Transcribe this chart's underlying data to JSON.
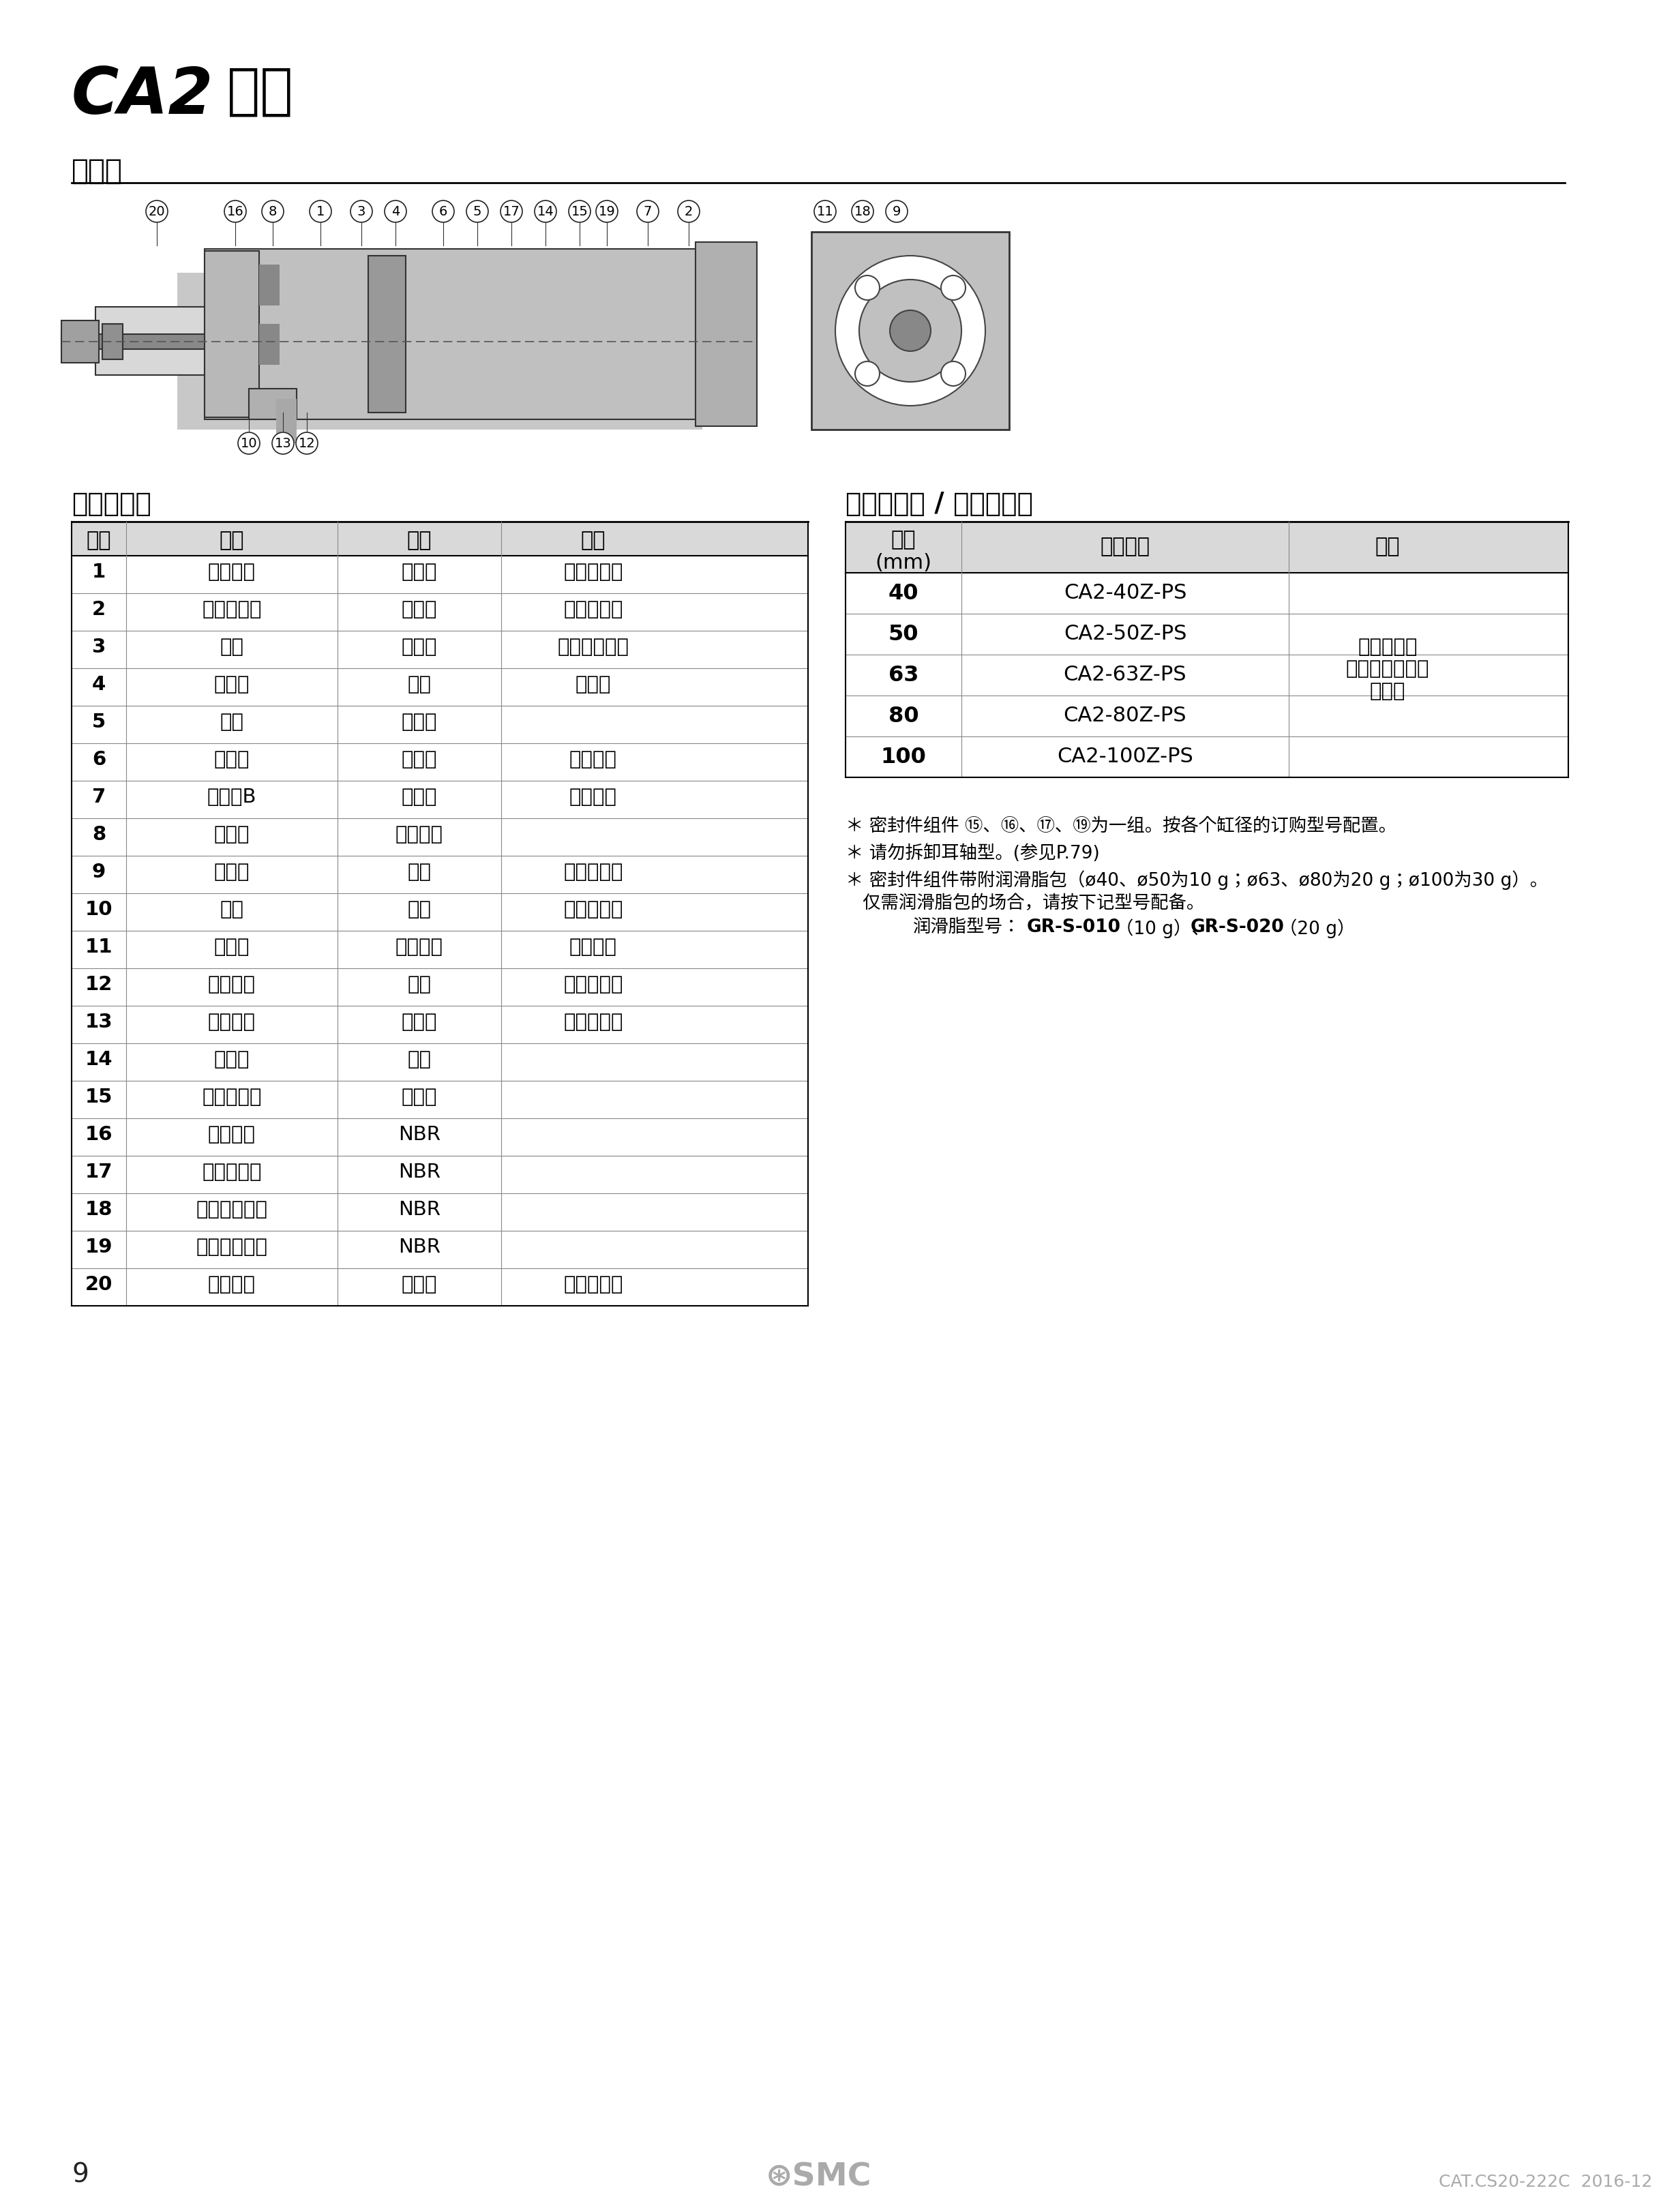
{
  "title_italic": "CA2",
  "title_normal": " 系列",
  "section_title": "结构图",
  "left_table_title": "组成零部件",
  "right_table_title": "可更换零件 / 密封件组件",
  "left_table_headers": [
    "序号",
    "名称",
    "材质",
    "备注"
  ],
  "left_table_rows": [
    [
      "1",
      "杆侧缸盖",
      "压铸铝",
      "三价铬酸盐"
    ],
    [
      "2",
      "无杆侧缸盖",
      "压铸铝",
      "三价铬酸盐"
    ],
    [
      "3",
      "缸筒",
      "铝合金",
      "硬质阳极氧化"
    ],
    [
      "4",
      "活塞杆",
      "碳钢",
      "镀硬铬"
    ],
    [
      "5",
      "活塞",
      "铝合金",
      ""
    ],
    [
      "6",
      "缓冲套",
      "铝合金",
      "阳极氧化"
    ],
    [
      "7",
      "缓冲套B",
      "铝合金",
      "阳极氧化"
    ],
    [
      "8",
      "导向套",
      "轴承合金",
      ""
    ],
    [
      "9",
      "缓冲阀",
      "钢线",
      "三价铬酸锌"
    ],
    [
      "10",
      "拉杆",
      "碳钢",
      "三价铬酸锌"
    ],
    [
      "11",
      "止动环",
      "弹簧用钢",
      "磷酸盐膜"
    ],
    [
      "12",
      "弹簧垫圈",
      "钢线",
      "三价铬酸锌"
    ],
    [
      "13",
      "拉杆螺母",
      "轧辊钢",
      "三价铬酸锌"
    ],
    [
      "14",
      "耐磨环",
      "树脂",
      ""
    ],
    [
      "15",
      "缓冲密封圈",
      "聚氨酯",
      ""
    ],
    [
      "16",
      "杆密封圈",
      "NBR",
      ""
    ],
    [
      "17",
      "活塞密封圈",
      "NBR",
      ""
    ],
    [
      "18",
      "缓冲阀密封圈",
      "NBR",
      ""
    ],
    [
      "19",
      "缸筒静密封圈",
      "NBR",
      ""
    ],
    [
      "20",
      "杆端螺母",
      "轧辊钢",
      "三价铬酸锌"
    ]
  ],
  "right_table_headers": [
    "缸径\n(mm)",
    "订购型号",
    "内容"
  ],
  "right_table_rows": [
    [
      "40",
      "CA2-40Z-PS",
      ""
    ],
    [
      "50",
      "CA2-50Z-PS",
      ""
    ],
    [
      "63",
      "CA2-63Z-PS",
      "上记序号的\n⑮、⑯、⑰、⑲\n为一组"
    ],
    [
      "80",
      "CA2-80Z-PS",
      ""
    ],
    [
      "100",
      "CA2-100Z-PS",
      ""
    ]
  ],
  "notes": [
    "＊ 密封件组件 ⑮、⑯、⑰、⑲为一组。按各个缸径的订购型号配置。",
    "＊ 请勿拆卸耳轴型。(参见P.79)",
    "＊ 密封件组件带附润滑脂包（ø40、ø50为10 g；ø63、ø80为20 g；ø100为30 g）。\n   仅需润滑脂包的场合，请按下记型号配备。",
    "   润滑脂型号：GR-S-010（10 g）、GR-S-020（20 g）"
  ],
  "page_number": "9",
  "catalog_number": "CAT.CS20-222C  2016-12",
  "bg_color": "#ffffff",
  "text_color": "#000000",
  "header_bg": "#d9d9d9",
  "table_line_color": "#666666",
  "bold_rows": [
    "1",
    "2",
    "3",
    "4",
    "5",
    "6",
    "7",
    "8",
    "9",
    "10",
    "11",
    "12",
    "13",
    "14",
    "15",
    "16",
    "17",
    "18",
    "19",
    "20"
  ],
  "right_bold_diameters": [
    "40",
    "50",
    "63",
    "80",
    "100"
  ]
}
